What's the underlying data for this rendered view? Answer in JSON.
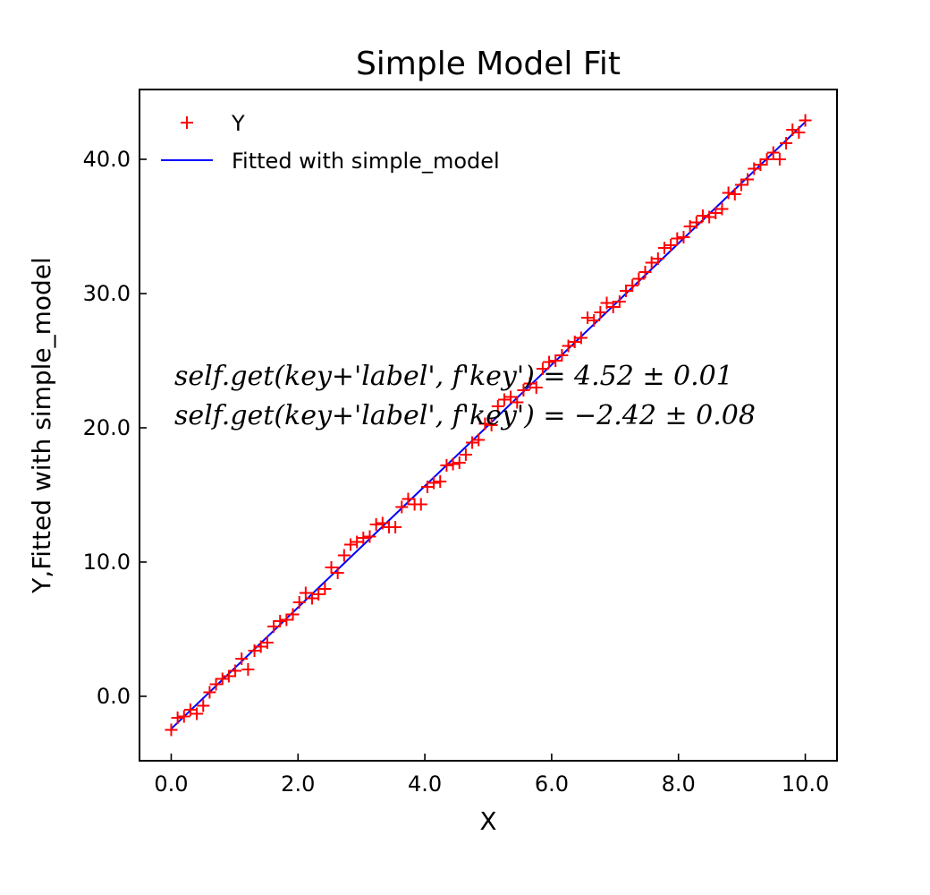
{
  "chart_data": {
    "type": "scatter",
    "title": "Simple Model Fit",
    "xlabel": "X",
    "ylabel": "Y,Fitted with simple_model",
    "xlim": [
      -0.5,
      10.5
    ],
    "ylim": [
      -4.8,
      45.2
    ],
    "xticks": [
      "0.0",
      "2.0",
      "4.0",
      "6.0",
      "8.0",
      "10.0"
    ],
    "yticks": [
      "0.0",
      "10.0",
      "20.0",
      "30.0",
      "40.0"
    ],
    "grid": false,
    "legend_position": "top-left",
    "series": [
      {
        "name": "Y",
        "kind": "scatter",
        "marker": "+",
        "color": "#ff0000",
        "x": [
          0.0,
          0.101,
          0.202,
          0.303,
          0.404,
          0.505,
          0.606,
          0.707,
          0.808,
          0.909,
          1.01,
          1.111,
          1.212,
          1.313,
          1.414,
          1.515,
          1.616,
          1.717,
          1.818,
          1.919,
          2.02,
          2.121,
          2.222,
          2.323,
          2.424,
          2.525,
          2.626,
          2.727,
          2.828,
          2.929,
          3.03,
          3.131,
          3.232,
          3.333,
          3.434,
          3.535,
          3.636,
          3.737,
          3.838,
          3.939,
          4.04,
          4.141,
          4.242,
          4.343,
          4.444,
          4.545,
          4.646,
          4.747,
          4.848,
          4.949,
          5.051,
          5.152,
          5.253,
          5.354,
          5.455,
          5.556,
          5.657,
          5.758,
          5.859,
          5.96,
          6.061,
          6.162,
          6.263,
          6.364,
          6.465,
          6.566,
          6.667,
          6.768,
          6.869,
          6.97,
          7.071,
          7.172,
          7.273,
          7.374,
          7.475,
          7.576,
          7.677,
          7.778,
          7.879,
          7.98,
          8.081,
          8.182,
          8.283,
          8.384,
          8.485,
          8.586,
          8.687,
          8.788,
          8.889,
          8.99,
          9.091,
          9.192,
          9.293,
          9.394,
          9.495,
          9.596,
          9.697,
          9.798,
          9.899,
          10.0
        ],
        "values": [
          -2.5,
          -1.6,
          -1.5,
          -1.0,
          -1.3,
          -0.7,
          0.3,
          0.9,
          1.3,
          1.5,
          1.9,
          2.8,
          2.0,
          3.4,
          3.7,
          4.0,
          5.2,
          5.6,
          5.7,
          6.1,
          7.0,
          7.7,
          7.3,
          7.6,
          8.0,
          9.6,
          9.2,
          10.5,
          11.3,
          11.5,
          11.8,
          11.9,
          12.8,
          12.9,
          12.6,
          12.6,
          14.1,
          14.7,
          14.3,
          14.3,
          15.6,
          15.9,
          16.0,
          17.2,
          17.3,
          17.4,
          18.0,
          18.9,
          19.1,
          20.3,
          20.2,
          21.6,
          22.1,
          22.3,
          21.9,
          22.8,
          23.3,
          23.0,
          24.4,
          24.9,
          25.0,
          25.4,
          26.1,
          26.4,
          26.7,
          28.2,
          28.0,
          28.6,
          29.3,
          29.0,
          29.4,
          30.2,
          30.6,
          31.1,
          31.6,
          32.3,
          32.6,
          33.4,
          33.6,
          34.1,
          34.2,
          35.0,
          35.3,
          35.8,
          35.7,
          36.0,
          36.3,
          37.5,
          37.4,
          38.1,
          38.5,
          39.3,
          39.6,
          40.0,
          40.5,
          40.0,
          41.2,
          42.2,
          42.0,
          42.9
        ]
      },
      {
        "name": "Fitted with simple_model",
        "kind": "line",
        "color": "#0000ff",
        "x": [
          0.0,
          10.0
        ],
        "values": [
          -2.42,
          42.78
        ]
      }
    ],
    "annotations": [
      "self.get(key+'label', f'key') = 4.52 ± 0.01",
      "self.get(key+'label', f'key') = −2.42 ± 0.08"
    ]
  }
}
